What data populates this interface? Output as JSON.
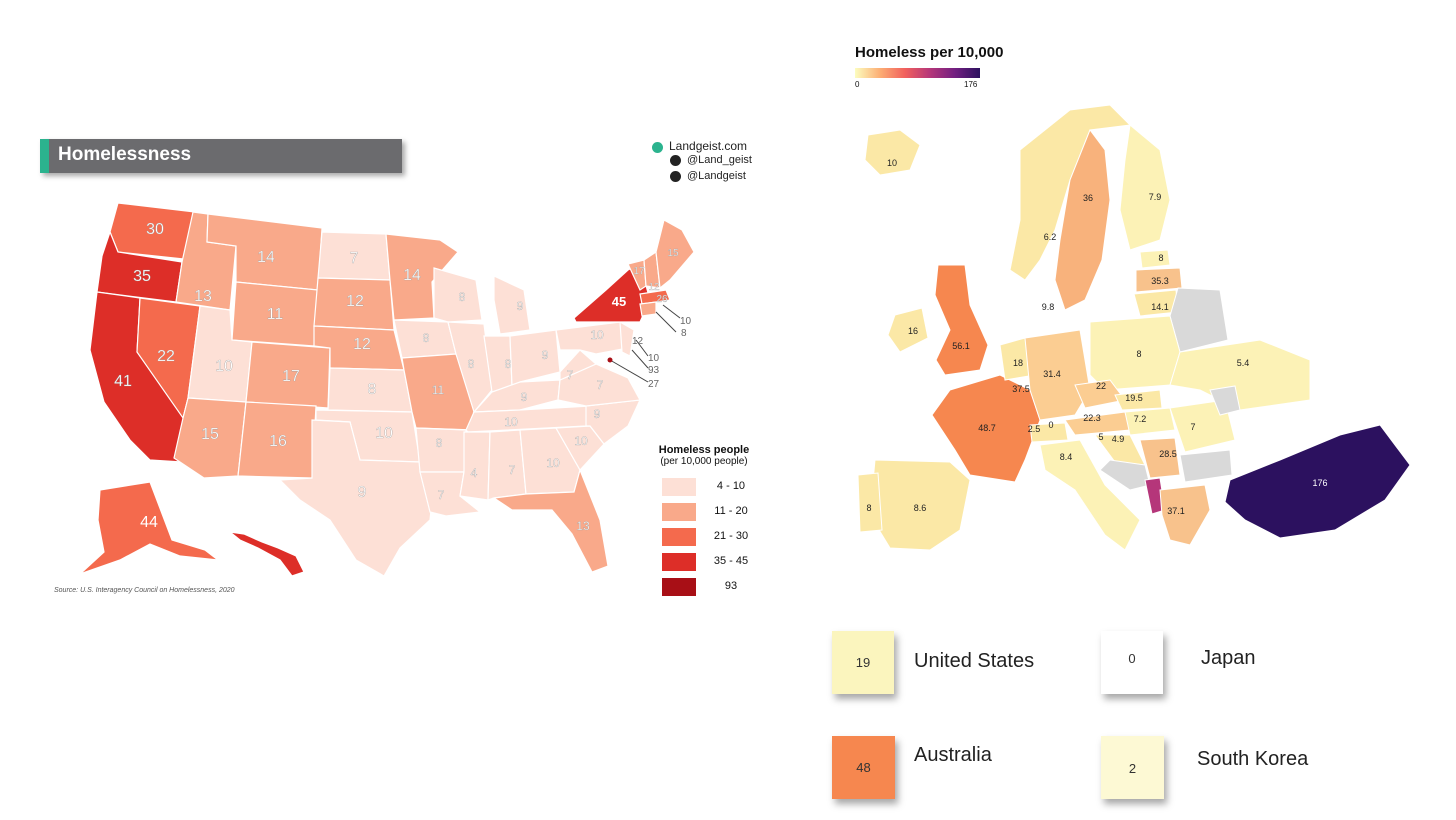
{
  "us_map": {
    "title": "Homelessness",
    "credits": [
      "Landgeist.com",
      "@Land_geist",
      "@Landgeist"
    ],
    "source": "Source: U.S. Interagency Council on Homelessness, 2020",
    "legend": {
      "title": "Homeless people",
      "subtitle": "(per 10,000 people)",
      "items": [
        {
          "label": "4 - 10",
          "color": "#fde0d6"
        },
        {
          "label": "11 - 20",
          "color": "#f9a98a"
        },
        {
          "label": "21 - 30",
          "color": "#f46a4d"
        },
        {
          "label": "35 - 45",
          "color": "#dd2e28"
        },
        {
          "label": "93",
          "color": "#a80f16"
        }
      ]
    },
    "state_labels": [
      "30",
      "35",
      "41",
      "13",
      "14",
      "7",
      "14",
      "12",
      "11",
      "22",
      "10",
      "12",
      "17",
      "8",
      "15",
      "16",
      "10",
      "9",
      "8",
      "8",
      "11",
      "8",
      "8",
      "9",
      "9",
      "7",
      "10",
      "7",
      "8",
      "10",
      "4",
      "7",
      "13",
      "10",
      "9",
      "10",
      "7",
      "9",
      "45",
      "17",
      "15",
      "12",
      "26",
      "10",
      "8",
      "12",
      "10",
      "93",
      "27",
      "44"
    ]
  },
  "europe_map": {
    "title": "Homeless per 10,000",
    "scale_min": "0",
    "scale_max": "176",
    "scale_colors": [
      "#fcfdbf",
      "#fcae74",
      "#f1605d",
      "#b5367a",
      "#721f81",
      "#2c115f"
    ],
    "country_labels": [
      "10",
      "36",
      "7.9",
      "6.2",
      "8",
      "35.3",
      "9.8",
      "14.1",
      "16",
      "56.1",
      "18",
      "31.4",
      "8",
      "5.4",
      "37.5",
      "22",
      "19.5",
      "22.3",
      "7.2",
      "48.7",
      "2.5",
      "0",
      "5",
      "4.9",
      "7",
      "8.4",
      "28.5",
      "176",
      "8",
      "8.6",
      "37.1"
    ]
  },
  "comparison": [
    {
      "country": "United States",
      "value": "19",
      "color": "#fbf5be"
    },
    {
      "country": "Japan",
      "value": "0",
      "color": "#ffffff"
    },
    {
      "country": "Australia",
      "value": "48",
      "color": "#f6874f"
    },
    {
      "country": "South Korea",
      "value": "2",
      "color": "#fdf9d4"
    }
  ]
}
